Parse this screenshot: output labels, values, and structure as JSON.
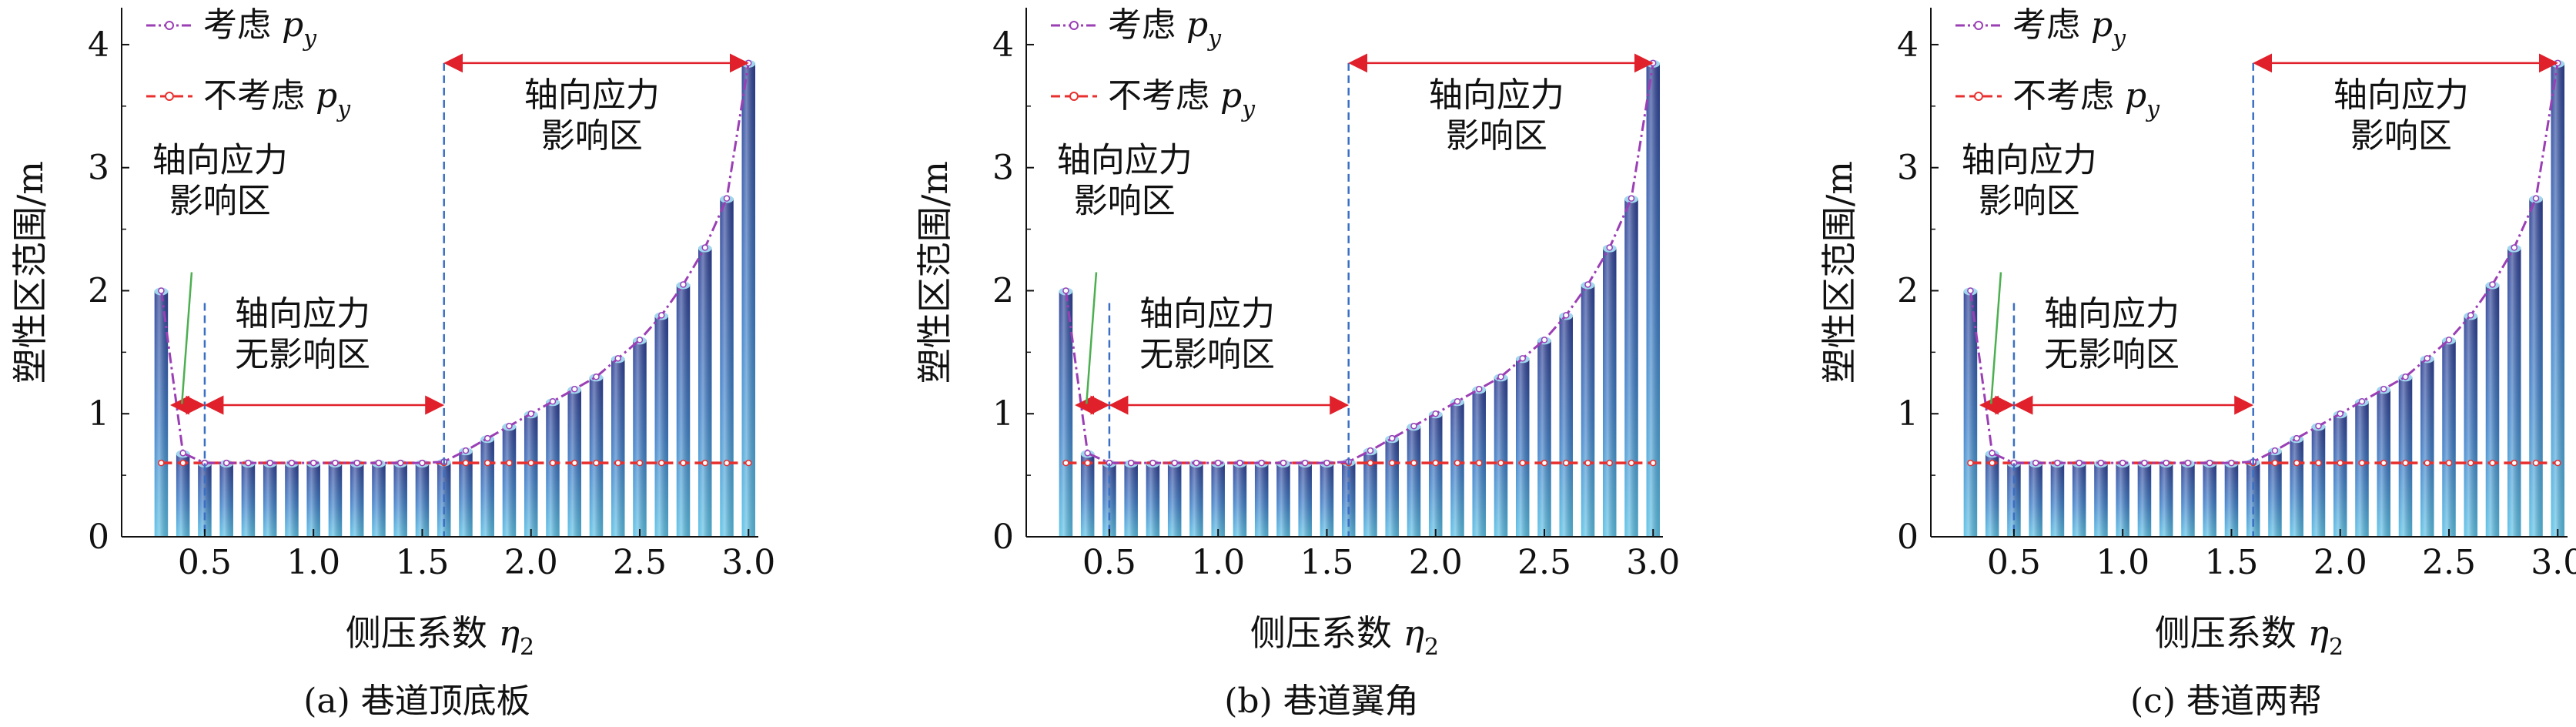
{
  "colors": {
    "bar_top": "#2f3f94",
    "bar_mid": "#3f7fc9",
    "bar_low": "#55b6df",
    "series_with": "#9b3fb5",
    "series_without": "#e8302f",
    "divider": "#3a6fc4",
    "arrow": "#e0202a",
    "annotation_line": "#4caf50"
  },
  "chart_data": [
    {
      "type": "bar",
      "caption": "(a) 巷道顶底板",
      "xlabel": "侧压系数 η₂",
      "ylabel": "塑性区范围/m",
      "xlim": [
        0.2,
        3.0
      ],
      "ylim": [
        0,
        4.3
      ],
      "xticks": [
        "0.5",
        "1.0",
        "1.5",
        "2.0",
        "2.5",
        "3.0"
      ],
      "yticks": [
        "0",
        "1",
        "2",
        "3",
        "4"
      ],
      "legend": [
        "考虑 p_y",
        "不考虑 p_y"
      ],
      "annotations": [
        "轴向应力影响区",
        "轴向应力无影响区",
        "轴向应力影响区"
      ],
      "x": [
        0.3,
        0.4,
        0.5,
        0.6,
        0.7,
        0.8,
        0.9,
        1.0,
        1.1,
        1.2,
        1.3,
        1.4,
        1.5,
        1.6,
        1.7,
        1.8,
        1.9,
        2.0,
        2.1,
        2.2,
        2.3,
        2.4,
        2.5,
        2.6,
        2.7,
        2.8,
        2.9,
        3.0
      ],
      "series": [
        {
          "name": "考虑 p_y",
          "values": [
            2.0,
            0.68,
            0.6,
            0.6,
            0.6,
            0.6,
            0.6,
            0.6,
            0.6,
            0.6,
            0.6,
            0.6,
            0.6,
            0.61,
            0.7,
            0.8,
            0.9,
            1.0,
            1.1,
            1.2,
            1.3,
            1.45,
            1.6,
            1.8,
            2.05,
            2.35,
            2.75,
            3.85
          ]
        },
        {
          "name": "不考虑 p_y",
          "values": [
            0.6,
            0.6,
            0.6,
            0.6,
            0.6,
            0.6,
            0.6,
            0.6,
            0.6,
            0.6,
            0.6,
            0.6,
            0.6,
            0.6,
            0.6,
            0.6,
            0.6,
            0.6,
            0.6,
            0.6,
            0.6,
            0.6,
            0.6,
            0.6,
            0.6,
            0.6,
            0.6,
            0.6
          ]
        }
      ],
      "zone_bounds": [
        0.35,
        0.5,
        1.6
      ]
    },
    {
      "type": "bar",
      "caption": "(b) 巷道翼角",
      "xlabel": "侧压系数 η₂",
      "ylabel": "塑性区范围/m",
      "xlim": [
        0.2,
        3.0
      ],
      "ylim": [
        0,
        4.3
      ],
      "xticks": [
        "0.5",
        "1.0",
        "1.5",
        "2.0",
        "2.5",
        "3.0"
      ],
      "yticks": [
        "0",
        "1",
        "2",
        "3",
        "4"
      ],
      "legend": [
        "考虑 p_y",
        "不考虑 p_y"
      ],
      "annotations": [
        "轴向应力影响区",
        "轴向应力无影响区",
        "轴向应力影响区"
      ],
      "x": [
        0.3,
        0.4,
        0.5,
        0.6,
        0.7,
        0.8,
        0.9,
        1.0,
        1.1,
        1.2,
        1.3,
        1.4,
        1.5,
        1.6,
        1.7,
        1.8,
        1.9,
        2.0,
        2.1,
        2.2,
        2.3,
        2.4,
        2.5,
        2.6,
        2.7,
        2.8,
        2.9,
        3.0
      ],
      "series": [
        {
          "name": "考虑 p_y",
          "values": [
            2.0,
            0.68,
            0.6,
            0.6,
            0.6,
            0.6,
            0.6,
            0.6,
            0.6,
            0.6,
            0.6,
            0.6,
            0.6,
            0.61,
            0.7,
            0.8,
            0.9,
            1.0,
            1.1,
            1.2,
            1.3,
            1.45,
            1.6,
            1.8,
            2.05,
            2.35,
            2.75,
            3.85
          ]
        },
        {
          "name": "不考虑 p_y",
          "values": [
            0.6,
            0.6,
            0.6,
            0.6,
            0.6,
            0.6,
            0.6,
            0.6,
            0.6,
            0.6,
            0.6,
            0.6,
            0.6,
            0.6,
            0.6,
            0.6,
            0.6,
            0.6,
            0.6,
            0.6,
            0.6,
            0.6,
            0.6,
            0.6,
            0.6,
            0.6,
            0.6,
            0.6
          ]
        }
      ],
      "zone_bounds": [
        0.35,
        0.5,
        1.6
      ]
    },
    {
      "type": "bar",
      "caption": "(c) 巷道两帮",
      "xlabel": "侧压系数 η₂",
      "ylabel": "塑性区范围/m",
      "xlim": [
        0.2,
        3.0
      ],
      "ylim": [
        0,
        4.3
      ],
      "xticks": [
        "0.5",
        "1.0",
        "1.5",
        "2.0",
        "2.5",
        "3.0"
      ],
      "yticks": [
        "0",
        "1",
        "2",
        "3",
        "4"
      ],
      "legend": [
        "考虑 p_y",
        "不考虑 p_y"
      ],
      "annotations": [
        "轴向应力影响区",
        "轴向应力无影响区",
        "轴向应力影响区"
      ],
      "x": [
        0.3,
        0.4,
        0.5,
        0.6,
        0.7,
        0.8,
        0.9,
        1.0,
        1.1,
        1.2,
        1.3,
        1.4,
        1.5,
        1.6,
        1.7,
        1.8,
        1.9,
        2.0,
        2.1,
        2.2,
        2.3,
        2.4,
        2.5,
        2.6,
        2.7,
        2.8,
        2.9,
        3.0
      ],
      "series": [
        {
          "name": "考虑 p_y",
          "values": [
            2.0,
            0.68,
            0.6,
            0.6,
            0.6,
            0.6,
            0.6,
            0.6,
            0.6,
            0.6,
            0.6,
            0.6,
            0.6,
            0.61,
            0.7,
            0.8,
            0.9,
            1.0,
            1.1,
            1.2,
            1.3,
            1.45,
            1.6,
            1.8,
            2.05,
            2.35,
            2.75,
            3.85
          ]
        },
        {
          "name": "不考虑 p_y",
          "values": [
            0.6,
            0.6,
            0.6,
            0.6,
            0.6,
            0.6,
            0.6,
            0.6,
            0.6,
            0.6,
            0.6,
            0.6,
            0.6,
            0.6,
            0.6,
            0.6,
            0.6,
            0.6,
            0.6,
            0.6,
            0.6,
            0.6,
            0.6,
            0.6,
            0.6,
            0.6,
            0.6,
            0.6
          ]
        }
      ],
      "zone_bounds": [
        0.35,
        0.5,
        1.6
      ]
    }
  ]
}
